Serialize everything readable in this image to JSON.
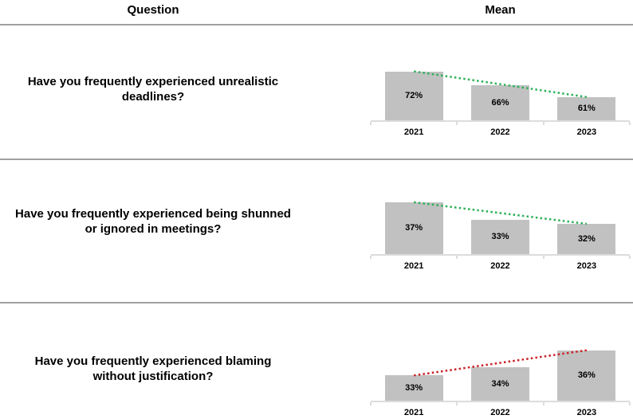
{
  "header": {
    "question_col": "Question",
    "mean_col": "Mean"
  },
  "colors": {
    "bar": "#c1c1c1",
    "axis": "#dcdcdc",
    "separator": "#a0a0a0",
    "trend_decline": "#2bb157",
    "trend_rise": "#cc1f26"
  },
  "chart_data": [
    {
      "type": "bar",
      "question": "Have you frequently experienced unrealistic deadlines?",
      "categories": [
        "2021",
        "2022",
        "2023"
      ],
      "values": [
        72,
        66,
        61
      ],
      "value_labels": [
        "72%",
        "66%",
        "61%"
      ],
      "ylim": [
        51,
        77
      ],
      "bar_color": "#c1c1c1",
      "grid": false,
      "legend": "none",
      "trendline": {
        "style": "dotted",
        "direction": "down",
        "color": "#2bb157"
      }
    },
    {
      "type": "bar",
      "question": "Have you frequently experienced being shunned or ignored in meetings?",
      "categories": [
        "2021",
        "2022",
        "2023"
      ],
      "values": [
        37,
        33,
        32
      ],
      "value_labels": [
        "37%",
        "33%",
        "32%"
      ],
      "ylim": [
        25,
        39
      ],
      "bar_color": "#c1c1c1",
      "grid": false,
      "legend": "none",
      "trendline": {
        "style": "dotted",
        "direction": "down",
        "color": "#2bb157"
      }
    },
    {
      "type": "bar",
      "question": "Have you frequently experienced blaming without justification?",
      "categories": [
        "2021",
        "2022",
        "2023"
      ],
      "values": [
        33,
        34,
        36
      ],
      "value_labels": [
        "33%",
        "34%",
        "36%"
      ],
      "ylim": [
        30,
        37.2
      ],
      "bar_color": "#c1c1c1",
      "grid": false,
      "legend": "none",
      "trendline": {
        "style": "dotted",
        "direction": "up",
        "color": "#cc1f26"
      }
    }
  ]
}
